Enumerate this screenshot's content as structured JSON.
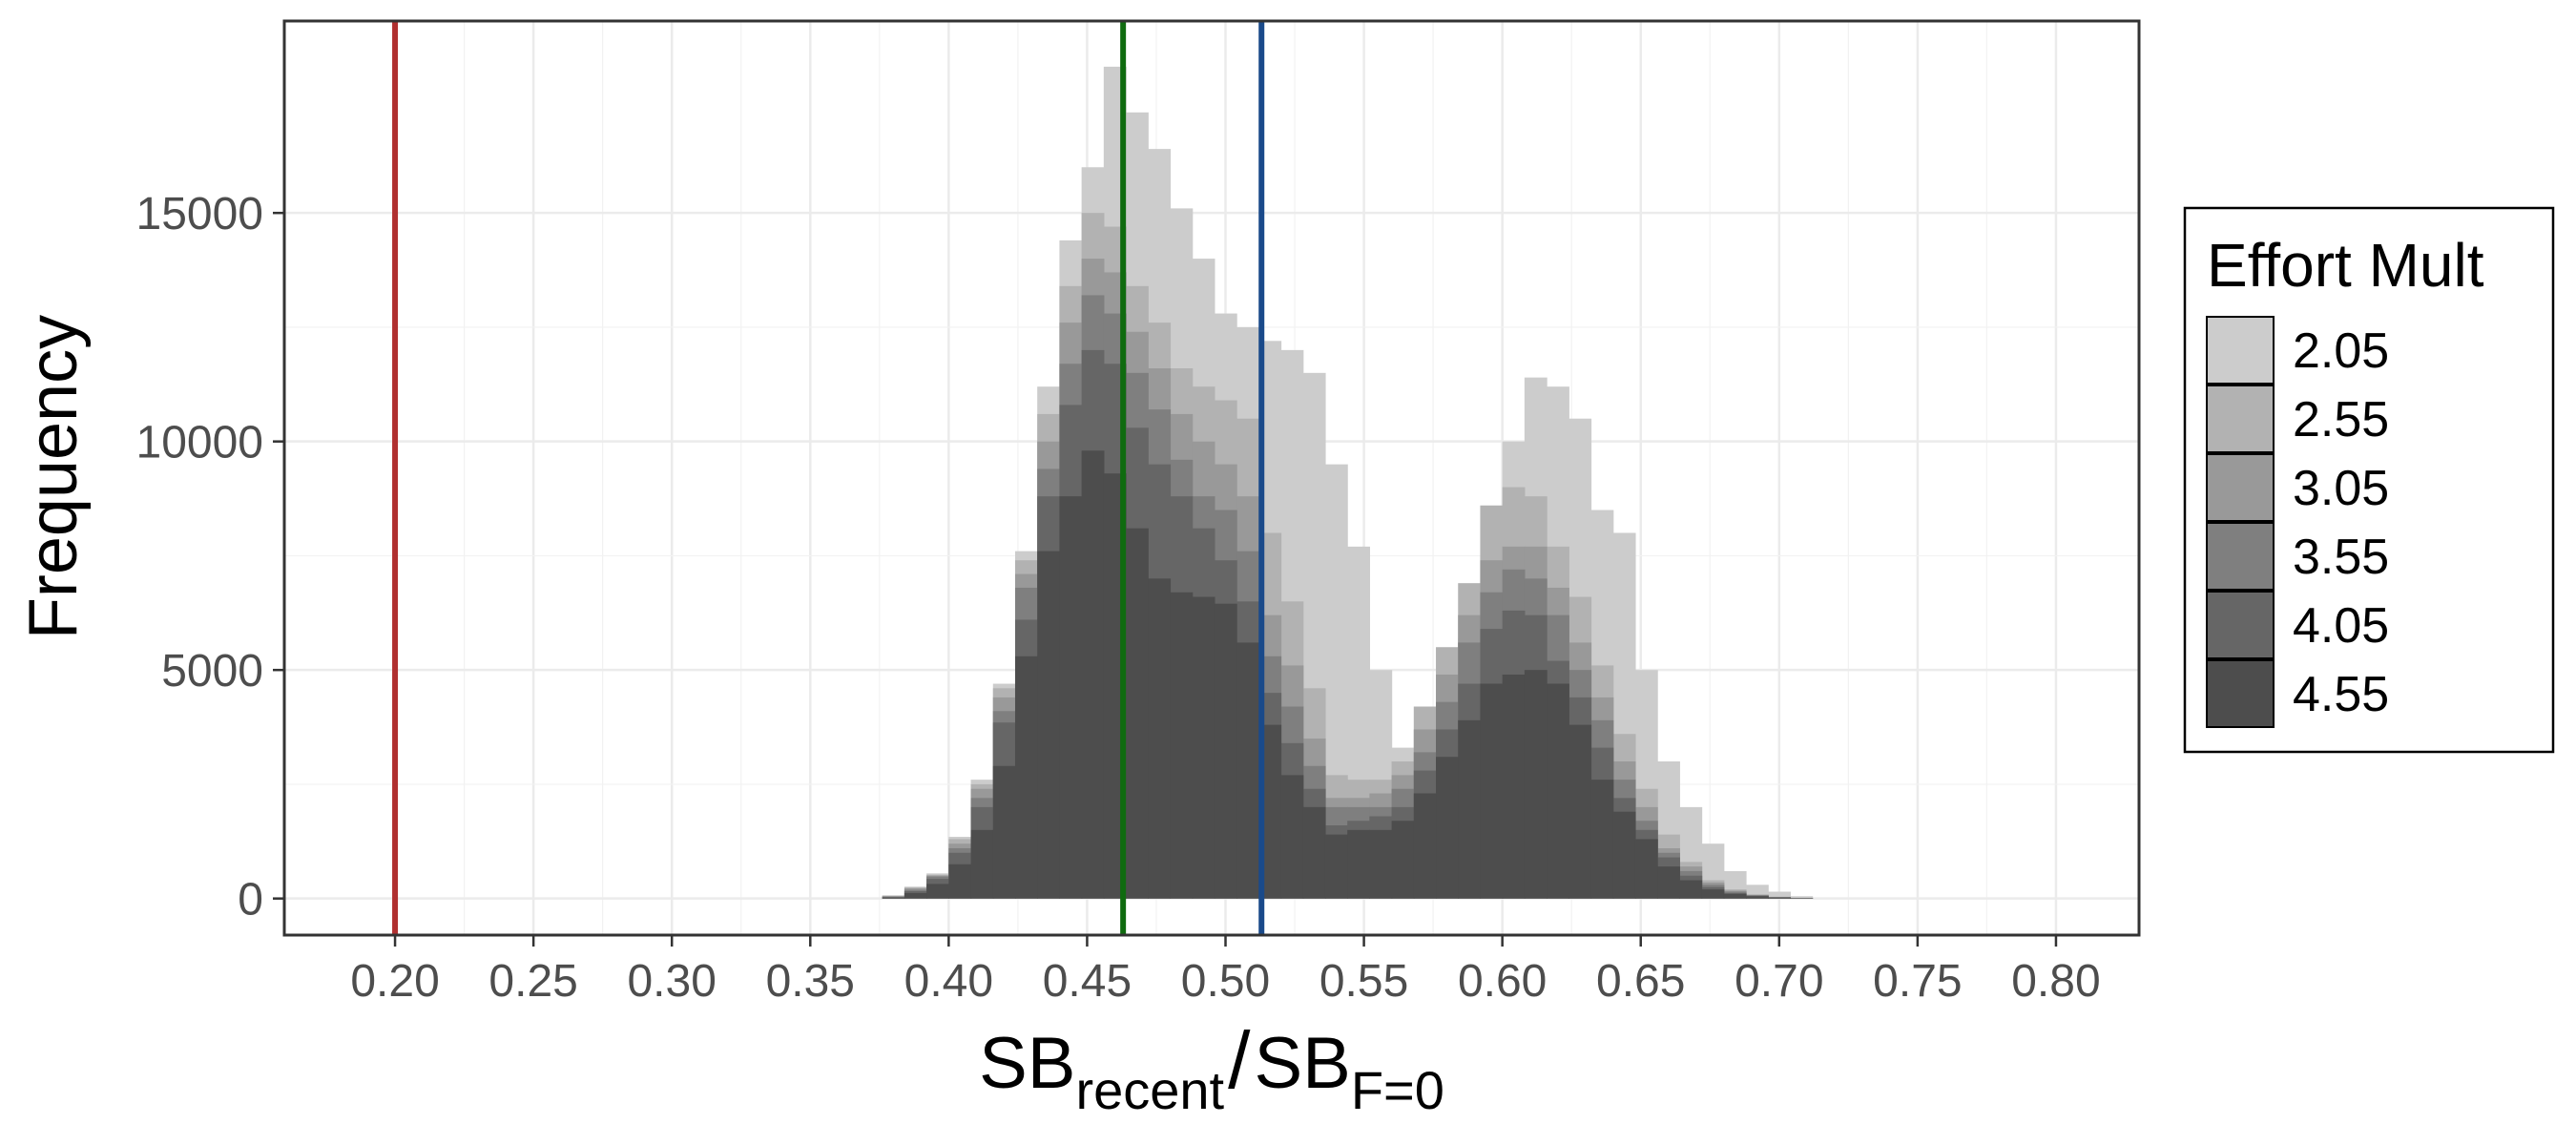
{
  "chart_data": {
    "type": "bar",
    "subtype": "stacked-histogram",
    "title": "",
    "xlabel": {
      "main": "SB",
      "sub1": "recent",
      "sep": "/",
      "main2": "SB",
      "sub2": "F=0"
    },
    "ylabel": "Frequency",
    "xlim": [
      0.16,
      0.83
    ],
    "ylim": [
      -800,
      19200
    ],
    "x_ticks": [
      {
        "value": 0.2,
        "label": "0.20"
      },
      {
        "value": 0.25,
        "label": "0.25"
      },
      {
        "value": 0.3,
        "label": "0.30"
      },
      {
        "value": 0.35,
        "label": "0.35"
      },
      {
        "value": 0.4,
        "label": "0.40"
      },
      {
        "value": 0.45,
        "label": "0.45"
      },
      {
        "value": 0.5,
        "label": "0.50"
      },
      {
        "value": 0.55,
        "label": "0.55"
      },
      {
        "value": 0.6,
        "label": "0.60"
      },
      {
        "value": 0.65,
        "label": "0.65"
      },
      {
        "value": 0.7,
        "label": "0.70"
      },
      {
        "value": 0.75,
        "label": "0.75"
      },
      {
        "value": 0.8,
        "label": "0.80"
      }
    ],
    "y_ticks": [
      {
        "value": 0,
        "label": "0"
      },
      {
        "value": 5000,
        "label": "5000"
      },
      {
        "value": 10000,
        "label": "10000"
      },
      {
        "value": 15000,
        "label": "15000"
      }
    ],
    "grid": true,
    "bin_width": 0.008,
    "bin_starts": [
      0.376,
      0.384,
      0.392,
      0.4,
      0.408,
      0.416,
      0.424,
      0.432,
      0.44,
      0.448,
      0.456,
      0.464,
      0.472,
      0.48,
      0.488,
      0.496,
      0.504,
      0.512,
      0.52,
      0.528,
      0.536,
      0.544,
      0.552,
      0.56,
      0.568,
      0.576,
      0.584,
      0.592,
      0.6,
      0.608,
      0.616,
      0.624,
      0.632,
      0.64,
      0.648,
      0.656,
      0.664,
      0.672,
      0.68,
      0.688,
      0.696,
      0.704
    ],
    "legend": {
      "title": "Effort Mult",
      "position": "right"
    },
    "series": [
      {
        "name": "4.55",
        "color": "#4d4d4d",
        "values": [
          20,
          120,
          320,
          750,
          1500,
          2900,
          5300,
          7600,
          8800,
          9800,
          9300,
          8100,
          7000,
          6700,
          6600,
          6450,
          5600,
          3800,
          2700,
          2000,
          1400,
          1500,
          1500,
          1700,
          2300,
          3100,
          3900,
          4700,
          4900,
          5000,
          4700,
          3800,
          2600,
          1900,
          1300,
          700,
          400,
          200,
          100,
          50,
          20,
          5
        ]
      },
      {
        "name": "4.05",
        "color": "#666666",
        "values": [
          30,
          160,
          430,
          1000,
          2000,
          3850,
          6100,
          8800,
          10800,
          12000,
          11700,
          10300,
          9500,
          8800,
          8100,
          7400,
          6500,
          4500,
          3400,
          2400,
          1600,
          1700,
          1800,
          2000,
          2800,
          3700,
          4700,
          5900,
          6300,
          6200,
          5200,
          4400,
          3300,
          2200,
          1500,
          900,
          500,
          250,
          120,
          60,
          25,
          8
        ]
      },
      {
        "name": "3.55",
        "color": "#7f7f7f",
        "values": [
          40,
          190,
          480,
          1100,
          2200,
          4100,
          6800,
          9400,
          11700,
          13200,
          12800,
          11500,
          10700,
          9600,
          8800,
          8500,
          7600,
          5300,
          4200,
          2900,
          2000,
          2000,
          2000,
          2400,
          3200,
          4300,
          5600,
          6700,
          7200,
          7000,
          6200,
          5000,
          3900,
          2600,
          1700,
          1000,
          600,
          300,
          150,
          70,
          30,
          10
        ]
      },
      {
        "name": "3.05",
        "color": "#999999",
        "values": [
          50,
          220,
          500,
          1200,
          2400,
          4400,
          7100,
          10000,
          12600,
          14000,
          13700,
          12400,
          11600,
          10600,
          10000,
          9500,
          8800,
          6200,
          5100,
          3500,
          2200,
          2200,
          2300,
          2700,
          3700,
          4900,
          6200,
          7400,
          7700,
          7700,
          6800,
          5600,
          4400,
          3000,
          2000,
          1100,
          700,
          350,
          170,
          80,
          35,
          12
        ]
      },
      {
        "name": "2.55",
        "color": "#b2b2b2",
        "values": [
          60,
          240,
          520,
          1300,
          2500,
          4600,
          7400,
          10600,
          13400,
          15000,
          14700,
          13400,
          12600,
          11600,
          11200,
          10900,
          10500,
          8000,
          6500,
          4600,
          2700,
          2600,
          2600,
          3000,
          4200,
          5500,
          6900,
          8600,
          9000,
          8800,
          7700,
          6600,
          5100,
          3600,
          2400,
          1400,
          800,
          400,
          200,
          90,
          40,
          15
        ]
      },
      {
        "name": "2.05",
        "color": "#cccccc",
        "values": [
          70,
          260,
          550,
          1350,
          2600,
          4700,
          7600,
          11200,
          14400,
          16000,
          18200,
          17200,
          16400,
          15100,
          14000,
          12800,
          12500,
          12200,
          12000,
          11500,
          9500,
          7700,
          5000,
          3300,
          3000,
          4000,
          5700,
          7500,
          10000,
          11400,
          11200,
          10500,
          8500,
          8000,
          5000,
          3000,
          2000,
          1200,
          600,
          300,
          150,
          50
        ]
      }
    ],
    "reference_lines": [
      {
        "x": 0.2,
        "color": "#b03030"
      },
      {
        "x": 0.463,
        "color": "#0f6b0f"
      },
      {
        "x": 0.513,
        "color": "#1a4a8a"
      }
    ]
  }
}
